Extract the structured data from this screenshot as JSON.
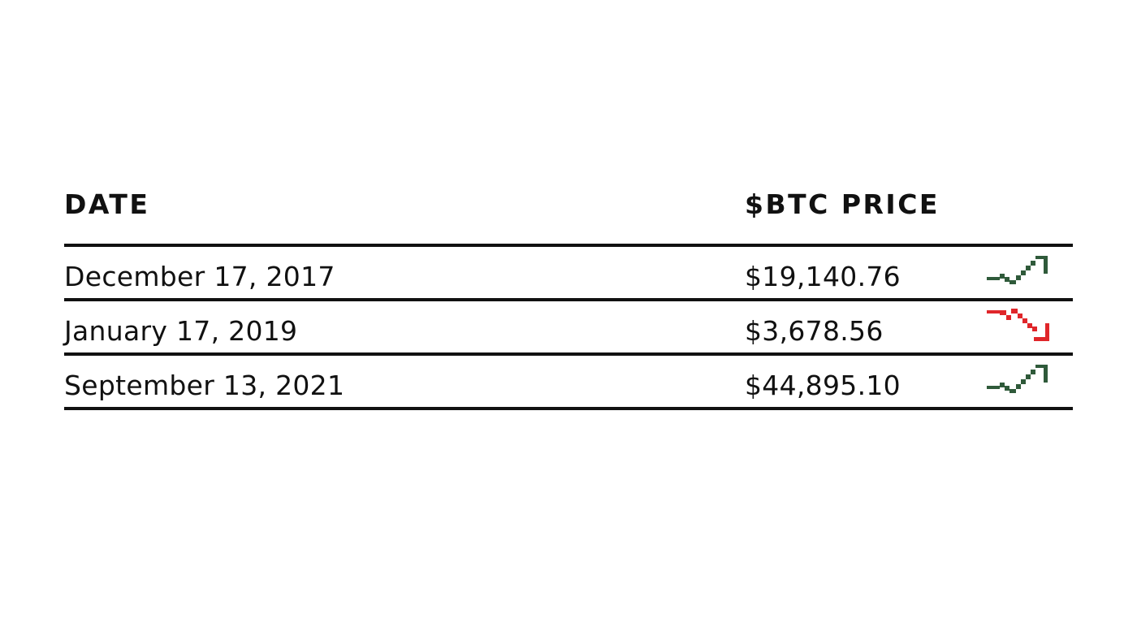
{
  "chart_data": {
    "type": "table",
    "columns": [
      "DATE",
      "$BTC PRICE"
    ],
    "rows": [
      {
        "date": "December 17, 2017",
        "price": "$19,140.76",
        "price_value": 19140.76,
        "trend": "up",
        "trend_icon": "trending-up-icon"
      },
      {
        "date": "January 17, 2019",
        "price": "$3,678.56",
        "price_value": 3678.56,
        "trend": "down",
        "trend_icon": "trending-down-icon"
      },
      {
        "date": "September 13, 2021",
        "price": "$44,895.10",
        "price_value": 44895.1,
        "trend": "up",
        "trend_icon": "trending-up-icon"
      }
    ],
    "colors": {
      "up": "#2f5a3a",
      "down": "#e0262a",
      "text": "#111111",
      "rule": "#111111"
    }
  }
}
